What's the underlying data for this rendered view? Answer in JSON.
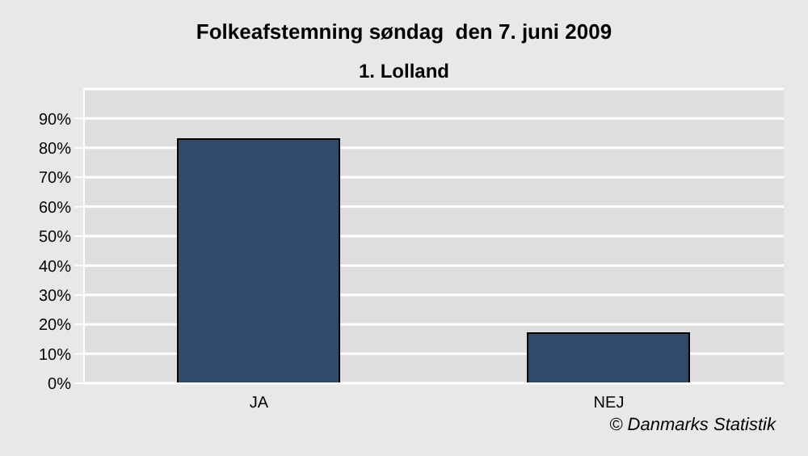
{
  "chart_data": {
    "type": "bar",
    "title": "Folkeafstemning søndag  den 7. juni 2009",
    "subtitle": "1. Lolland",
    "categories": [
      "JA",
      "NEJ"
    ],
    "values": [
      83,
      17
    ],
    "color": "#314a6b",
    "ylim": [
      0,
      100
    ],
    "yticks": [
      {
        "value": 0,
        "label": "0%"
      },
      {
        "value": 10,
        "label": "10%"
      },
      {
        "value": 20,
        "label": "20%"
      },
      {
        "value": 30,
        "label": "30%"
      },
      {
        "value": 40,
        "label": "40%"
      },
      {
        "value": 50,
        "label": "50%"
      },
      {
        "value": 60,
        "label": "60%"
      },
      {
        "value": 70,
        "label": "70%"
      },
      {
        "value": 80,
        "label": "80%"
      },
      {
        "value": 90,
        "label": "90%"
      }
    ],
    "grid": "y",
    "annotations": [
      "© Danmarks Statistik"
    ]
  }
}
